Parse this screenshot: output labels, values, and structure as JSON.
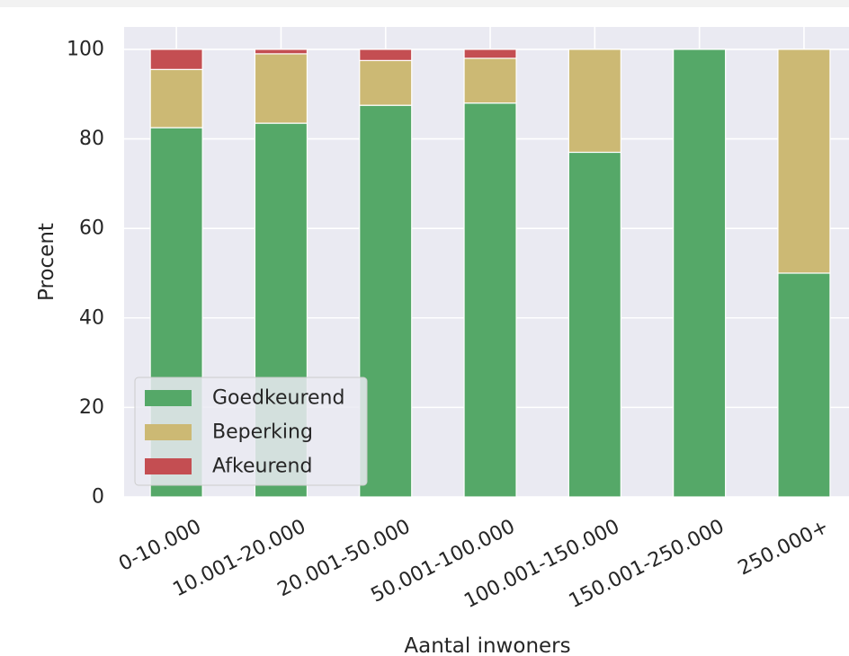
{
  "chart_data": {
    "type": "bar",
    "stacked": true,
    "categories": [
      "0-10.000",
      "10.001-20.000",
      "20.001-50.000",
      "50.001-100.000",
      "100.001-150.000",
      "150.001-250.000",
      "250.000+"
    ],
    "series": [
      {
        "name": "Goedkeurend",
        "color": "#55a868",
        "values": [
          82.5,
          83.5,
          87.5,
          88.0,
          77.0,
          100.0,
          50.0
        ]
      },
      {
        "name": "Beperking",
        "color": "#ccb974",
        "values": [
          13.0,
          15.5,
          10.0,
          10.0,
          23.0,
          0.0,
          50.0
        ]
      },
      {
        "name": "Afkeurend",
        "color": "#c44e52",
        "values": [
          4.5,
          1.0,
          2.5,
          2.0,
          0.0,
          0.0,
          0.0
        ]
      }
    ],
    "title": "",
    "xlabel": "Aantal inwoners",
    "ylabel": "Procent",
    "ylim": [
      0,
      105
    ],
    "yticks": [
      0,
      20,
      40,
      60,
      80,
      100
    ],
    "grid": true,
    "legend_position": "lower-left",
    "background_color": "#eaeaf2"
  }
}
